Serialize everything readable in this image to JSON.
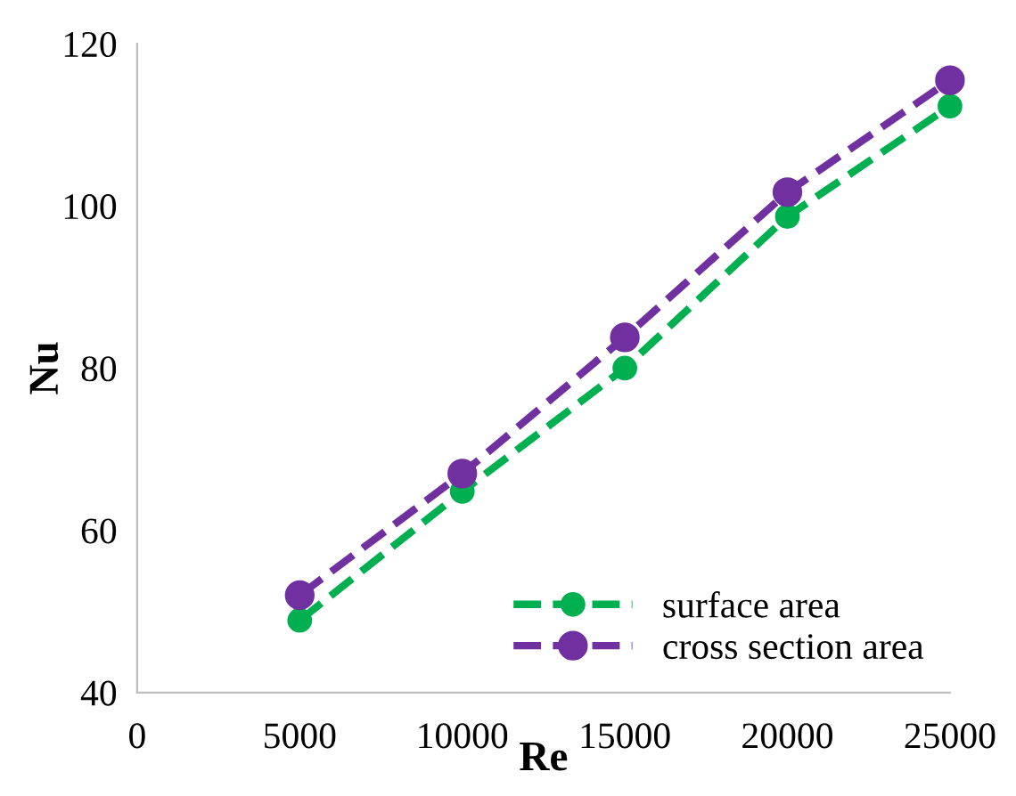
{
  "chart_data": {
    "type": "line",
    "xlabel": "Re",
    "ylabel": "Nu",
    "x": [
      5000,
      10000,
      15000,
      20000,
      25000
    ],
    "series": [
      {
        "name": "surface area",
        "color": "#00b050",
        "values": [
          48.9,
          64.8,
          80,
          98.7,
          112.3
        ]
      },
      {
        "name": "cross section area",
        "color": "#7030a0",
        "values": [
          52,
          67,
          83.8,
          101.7,
          115.5
        ]
      }
    ],
    "xlim": [
      0,
      25000
    ],
    "xticks": [
      0,
      5000,
      10000,
      15000,
      20000,
      25000
    ],
    "ylim": [
      40,
      120
    ],
    "yticks": [
      40,
      60,
      80,
      100,
      120
    ],
    "grid": false,
    "legend": "bottom right",
    "marker": "circle",
    "line_style": "dashed"
  }
}
